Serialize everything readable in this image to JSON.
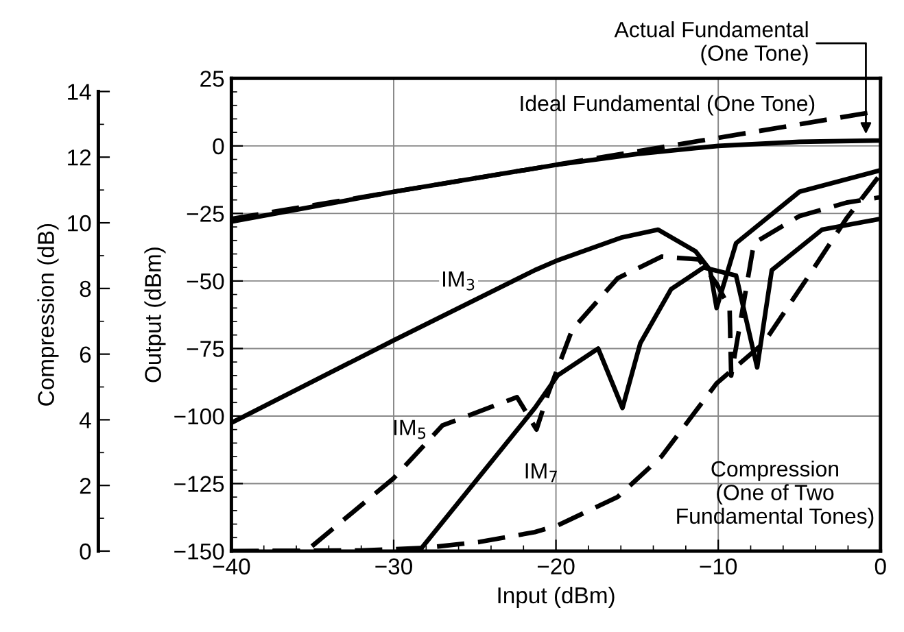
{
  "chart_data": {
    "type": "line",
    "xlabel": "Input (dBm)",
    "ylabel": "Output (dBm)",
    "y2label": "Compression (dB)",
    "xlim": [
      -40,
      0
    ],
    "xticks": [
      -40,
      -30,
      -20,
      -10,
      0
    ],
    "ylim": [
      -150,
      25
    ],
    "yticks": [
      -150,
      -125,
      -100,
      -75,
      -50,
      -25,
      0,
      25
    ],
    "y2lim": [
      0,
      14.4
    ],
    "y2ticks": [
      0,
      2,
      4,
      6,
      8,
      10,
      12,
      14
    ],
    "grid": true,
    "legend": false,
    "marker": "none",
    "series": [
      {
        "name": "Ideal Fundamental (One Tone)",
        "color": "#000000",
        "line_style": "dashed",
        "x": [
          -40,
          0
        ],
        "values": [
          -27,
          13
        ]
      },
      {
        "name": "Actual Fundamental\n(One Tone)",
        "color": "#000000",
        "line_style": "solid",
        "x": [
          -40,
          -30,
          -20,
          -15,
          -10,
          -5,
          0
        ],
        "values": [
          -28,
          -17,
          -7,
          -3,
          0,
          1.5,
          2
        ]
      },
      {
        "name": "IM$_{3}$",
        "color": "#000000",
        "line_style": "solid",
        "x": [
          -40,
          -30,
          -21.3,
          -20,
          -16,
          -13.7,
          -11.4,
          -10.5,
          -10.1,
          -8.9,
          -5,
          0
        ],
        "values": [
          -102.5,
          -72,
          -46,
          -42.6,
          -34,
          -31,
          -39,
          -46,
          -60,
          -36,
          -17,
          -9
        ]
      },
      {
        "name": "IM$_{5}$",
        "color": "#000000",
        "line_style": "dashed",
        "x": [
          -40,
          -35.4,
          -30,
          -27,
          -22.4,
          -21.2,
          -20.5,
          -19,
          -16.2,
          -13.5,
          -11.2,
          -10.1,
          -9.3,
          -9.2,
          -7.8,
          -5,
          -2.1,
          0
        ],
        "values": [
          -150,
          -150,
          -123,
          -103.5,
          -93,
          -105,
          -92,
          -68,
          -49,
          -41,
          -42,
          -51,
          -60,
          -85,
          -36,
          -26,
          -21,
          -19
        ]
      },
      {
        "name": "IM$_{7}$",
        "color": "#000000",
        "line_style": "solid",
        "x": [
          -28.3,
          -21.3,
          -19.9,
          -17.4,
          -15.9,
          -14.8,
          -12.9,
          -10.9,
          -8.9,
          -7.6,
          -6.7,
          -3.6,
          0
        ],
        "values": [
          -149,
          -97,
          -85,
          -75,
          -97,
          -73,
          -53,
          -45,
          -48,
          -82,
          -46,
          -31,
          -27
        ]
      },
      {
        "name": "Compression\n(One of Two\nFundamental Tones)",
        "color": "#000000",
        "line_style": "dashed",
        "axis": "y2",
        "x": [
          -40,
          -32,
          -28,
          -24.7,
          -21.3,
          -19.9,
          -16.2,
          -13.5,
          -10.1,
          -7.2,
          -4.4,
          -2.1,
          0
        ],
        "values": [
          0,
          0.02,
          0.1,
          0.28,
          0.58,
          0.78,
          1.65,
          2.88,
          5.11,
          6.34,
          8.4,
          10.13,
          11.48
        ]
      }
    ]
  }
}
